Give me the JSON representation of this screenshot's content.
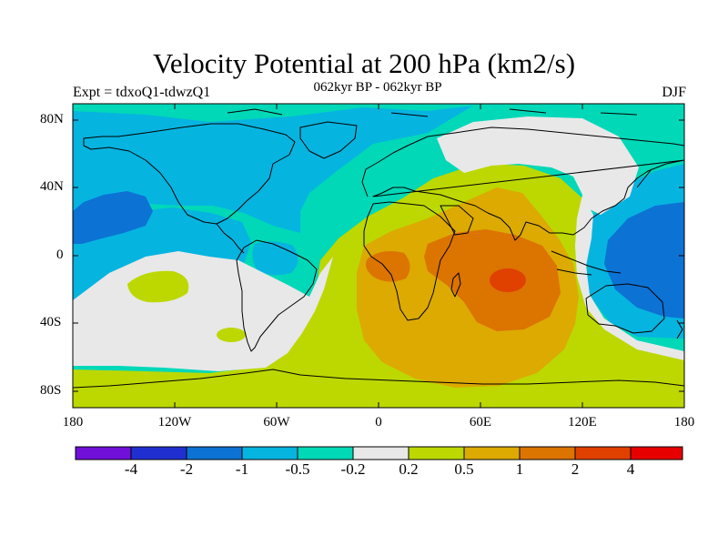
{
  "title": "Velocity Potential at 200 hPa (km2/s)",
  "subtitle": "062kyr BP - 062kyr BP",
  "left_label": "Expt = tdxoQ1-tdwzQ1",
  "right_label": "DJF",
  "lat_labels": [
    "80N",
    "40N",
    "0",
    "40S",
    "80S"
  ],
  "lon_labels": [
    "180",
    "120W",
    "60W",
    "0",
    "60E",
    "120E",
    "180"
  ],
  "colorbar": {
    "colors": [
      "#7010d8",
      "#2030d0",
      "#0c72d4",
      "#06b4e0",
      "#00d8b8",
      "#e8e8e8",
      "#bcd800",
      "#dcaa00",
      "#dc7400",
      "#e04000",
      "#e80000"
    ],
    "labels": [
      "-4",
      "-2",
      "-1",
      "-0.5",
      "-0.2",
      "0.2",
      "0.5",
      "1",
      "2",
      "4"
    ]
  },
  "chart_data": {
    "type": "contour-map",
    "projection": "cylindrical-equidistant",
    "variable": "Velocity Potential at 200 hPa",
    "units": "km2/s",
    "season": "DJF",
    "lon_range": [
      -180,
      180
    ],
    "lat_range": [
      -90,
      90
    ],
    "contour_levels": [
      -4,
      -2,
      -1,
      -0.5,
      -0.2,
      0.2,
      0.5,
      1,
      2,
      4
    ],
    "field_summary": {
      "maximum": "Indian Ocean / southern Africa, value between 2 and 4 near 80E 20S",
      "minimum": "central North Pacific and western Pacific, value between -2 and -1"
    }
  }
}
